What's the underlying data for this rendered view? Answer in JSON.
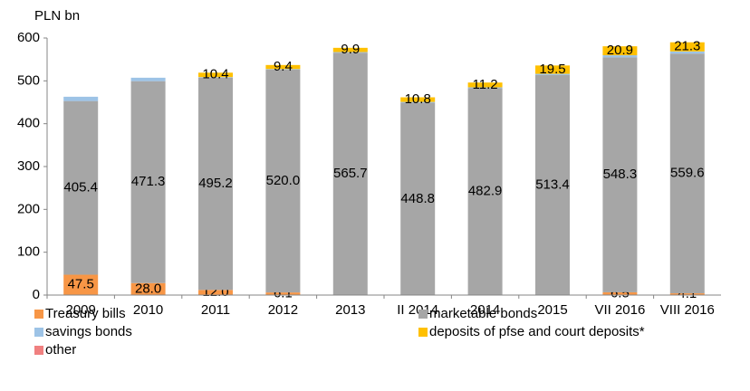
{
  "chart_data": {
    "type": "stacked_bar",
    "y_axis_title": "PLN bn",
    "categories": [
      "2009",
      "2010",
      "2011",
      "2012",
      "2013",
      "II 2014",
      "2014",
      "2015",
      "VII 2016",
      "VIII 2016"
    ],
    "series": [
      {
        "name": "Treasury bills",
        "color": "#f79646",
        "values": [
          47.5,
          28.0,
          12.0,
          6.1,
          0,
          0,
          0,
          0,
          6.5,
          4.1
        ],
        "value_labels": [
          "47.5",
          "28.0",
          "12.0",
          "6.1",
          null,
          null,
          null,
          null,
          "6.5",
          "4.1"
        ]
      },
      {
        "name": "marketable bonds",
        "color": "#a6a6a6",
        "values": [
          405.4,
          471.3,
          495.2,
          520.0,
          565.7,
          448.8,
          482.9,
          513.4,
          548.3,
          559.6
        ],
        "value_labels": [
          "405.4",
          "471.3",
          "495.2",
          "520.0",
          "565.7",
          "448.8",
          "482.9",
          "513.4",
          "548.3",
          "559.6"
        ]
      },
      {
        "name": "savings bonds",
        "color": "#9dc3e6",
        "values": [
          10,
          8,
          1.5,
          1.5,
          1.5,
          2,
          2,
          3,
          5,
          5
        ]
      },
      {
        "name": "deposits of pfse and court deposits*",
        "color": "#ffc000",
        "values": [
          0,
          0,
          10.4,
          9.4,
          9.9,
          10.8,
          11.2,
          19.5,
          20.9,
          21.3
        ],
        "value_labels": [
          null,
          null,
          "10.4",
          "9.4",
          "9.9",
          "10.8",
          "11.2",
          "19.5",
          "20.9",
          "21.3"
        ]
      },
      {
        "name": "other",
        "color": "#f08080",
        "values": [
          0,
          0,
          0,
          0,
          0,
          0,
          0,
          0,
          0,
          0
        ]
      }
    ],
    "ylim": [
      0,
      600
    ],
    "yticks": [
      0,
      100,
      200,
      300,
      400,
      500,
      600
    ],
    "legend": "bottom"
  }
}
